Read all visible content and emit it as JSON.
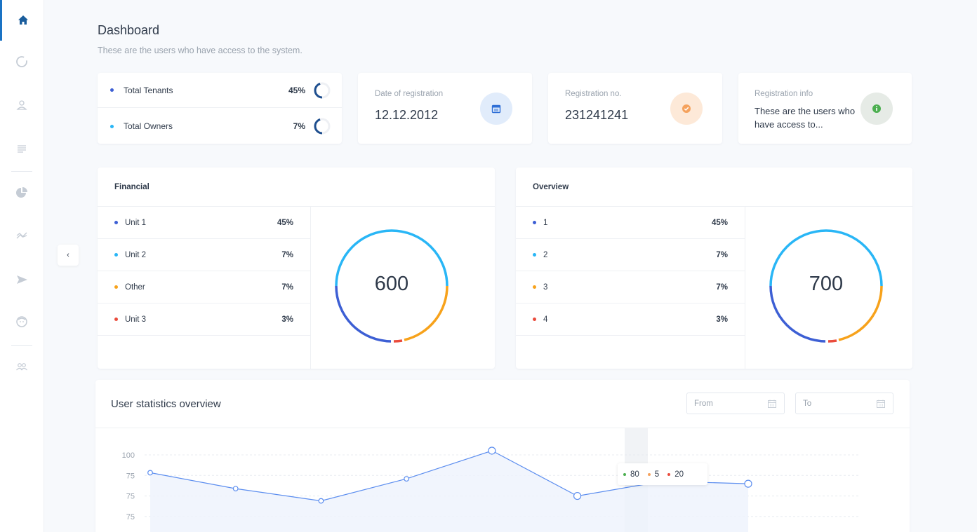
{
  "sidebar": {
    "items": [
      {
        "icon": "home-icon"
      },
      {
        "icon": "donut-icon"
      },
      {
        "icon": "user-icon"
      },
      {
        "icon": "list-icon"
      },
      {
        "icon": "pie-chart-icon"
      },
      {
        "icon": "trend-icon"
      },
      {
        "icon": "send-icon"
      },
      {
        "icon": "face-icon"
      },
      {
        "icon": "users-icon"
      }
    ]
  },
  "header": {
    "title": "Dashboard",
    "subtitle": "These are the users who have access to the system."
  },
  "totals": [
    {
      "label": "Total Tenants",
      "pct": "45%",
      "color": "#3d5fd4",
      "fill": 0.45
    },
    {
      "label": "Total Owners",
      "pct": "7%",
      "color": "#29b6f6",
      "fill": 0.07
    }
  ],
  "info_cards": {
    "date": {
      "label": "Date of registration",
      "value": "12.12.2012",
      "icon": "calendar-icon",
      "bg": "#e1ecfb",
      "color": "#2f6fd6"
    },
    "regno": {
      "label": "Registration no.",
      "value": "231241241",
      "icon": "check-circle-icon",
      "bg": "#fde9d8",
      "color": "#f5a25d"
    },
    "reginfo": {
      "label": "Registration info",
      "value": "These are the users who have access to...",
      "icon": "info-icon",
      "bg": "#e6ebe6",
      "color": "#4caf50"
    }
  },
  "financial": {
    "title": "Financial",
    "total": "600",
    "items": [
      {
        "label": "Unit 1",
        "pct": "45%",
        "color": "#3d5fd4"
      },
      {
        "label": "Unit 2",
        "pct": "7%",
        "color": "#29b6f6"
      },
      {
        "label": "Other",
        "pct": "7%",
        "color": "#f7a21b"
      },
      {
        "label": "Unit 3",
        "pct": "3%",
        "color": "#ea4b3c"
      }
    ]
  },
  "overview": {
    "title": "Overview",
    "total": "700",
    "items": [
      {
        "label": "1",
        "pct": "45%",
        "color": "#3d5fd4"
      },
      {
        "label": "2",
        "pct": "7%",
        "color": "#29b6f6"
      },
      {
        "label": "3",
        "pct": "7%",
        "color": "#f7a21b"
      },
      {
        "label": "4",
        "pct": "3%",
        "color": "#ea4b3c"
      }
    ]
  },
  "stats": {
    "title": "User statistics overview",
    "from_placeholder": "From",
    "to_placeholder": "To",
    "tooltip": [
      {
        "value": "80",
        "color": "#4caf50"
      },
      {
        "value": "5",
        "color": "#f5a25d"
      },
      {
        "value": "20",
        "color": "#ea4b3c"
      }
    ]
  },
  "chart_data": {
    "type": "area",
    "y_ticks": [
      "100",
      "75",
      "75",
      "75"
    ],
    "series": [
      {
        "values": [
          74,
          48,
          28,
          64,
          110,
          36,
          60,
          56
        ],
        "color": "#5b8def"
      }
    ],
    "ylim": [
      0,
      125
    ],
    "grid": true
  }
}
